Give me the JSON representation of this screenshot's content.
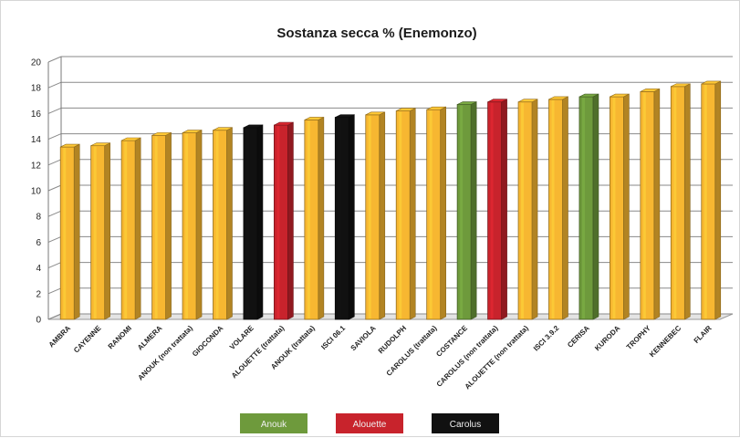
{
  "chart_data": {
    "type": "bar",
    "title": "Sostanza secca % (Enemonzo)",
    "xlabel": "",
    "ylabel": "",
    "ylim": [
      0,
      20
    ],
    "yticks": [
      "0",
      "2",
      "4",
      "6",
      "8",
      "10",
      "12",
      "14",
      "16",
      "18",
      "20"
    ],
    "grid": true,
    "categories": [
      "AMBRA",
      "CAYENNE",
      "RANOMI",
      "ALMERA",
      "ANOUK (non trattata)",
      "GIOCONDA",
      "VOLARE",
      "ALOUETTE (trattata)",
      "ANOUK (trattata)",
      "ISCI 06.1",
      "SAVIOLA",
      "RUDOLPH",
      "CAROLUS (trattata)",
      "COSTANCE",
      "CAROLUS (non trattata)",
      "ALOUETTE (non trattata)",
      "ISCI 3.9.2",
      "CERISA",
      "KURODA",
      "TROPHY",
      "KENNEBEC",
      "FLAIR"
    ],
    "values": [
      13.4,
      13.5,
      13.9,
      14.3,
      14.5,
      14.7,
      14.9,
      15.1,
      15.5,
      15.7,
      15.9,
      16.2,
      16.3,
      16.7,
      16.9,
      16.9,
      17.1,
      17.3,
      17.3,
      17.7,
      18.1,
      18.3
    ],
    "bar_colors": [
      "#f7b731",
      "#f7b731",
      "#f7b731",
      "#f7b731",
      "#f7b731",
      "#f7b731",
      "#111111",
      "#c8232c",
      "#f7b731",
      "#111111",
      "#f7b731",
      "#f7b731",
      "#f7b731",
      "#6e9a3c",
      "#c8232c",
      "#f7b731",
      "#f7b731",
      "#6e9a3c",
      "#f7b731",
      "#f7b731",
      "#f7b731",
      "#f7b731"
    ],
    "legend": [
      {
        "name": "Anouk",
        "color": "#6e9a3c"
      },
      {
        "name": "Alouette",
        "color": "#c8232c"
      },
      {
        "name": "Carolus",
        "color": "#111111"
      }
    ],
    "legend_position": "bottom"
  }
}
